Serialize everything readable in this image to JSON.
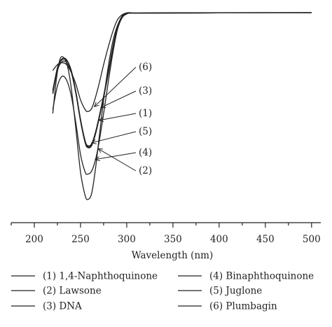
{
  "chart_data": {
    "type": "line",
    "xlabel": "Wavelength (nm)",
    "ylabel": "",
    "xlim": [
      175,
      510
    ],
    "ylim": [
      0,
      1
    ],
    "xticks": [
      200,
      250,
      300,
      350,
      400,
      450,
      500
    ],
    "tick_labels": [
      "200",
      "250",
      "300",
      "350",
      "400",
      "450",
      "500"
    ],
    "grid": false,
    "legend_placement": "bottom",
    "line_color": "#222222",
    "series": [
      {
        "name": "(1) 1,4-Naphthoquinone",
        "annotation": "(1)",
        "x": [
          220,
          225,
          230,
          235,
          240,
          245,
          250,
          255,
          258,
          262,
          266,
          270,
          275,
          280,
          285,
          290,
          295,
          300,
          305,
          310,
          400,
          500
        ],
        "y": [
          0.58,
          0.7,
          0.745,
          0.74,
          0.69,
          0.58,
          0.44,
          0.33,
          0.305,
          0.315,
          0.37,
          0.45,
          0.56,
          0.68,
          0.81,
          0.92,
          0.975,
          0.993,
          0.995,
          0.994,
          0.995,
          0.996
        ]
      },
      {
        "name": "(2) Lawsone",
        "annotation": "(2)",
        "x": [
          220,
          224,
          228,
          232,
          236,
          240,
          245,
          250,
          255,
          258,
          262,
          266,
          270,
          275,
          280,
          285,
          290,
          295,
          300,
          305,
          310,
          400,
          500
        ],
        "y": [
          0.48,
          0.66,
          0.76,
          0.765,
          0.72,
          0.61,
          0.4,
          0.18,
          0.06,
          0.04,
          0.07,
          0.19,
          0.35,
          0.55,
          0.72,
          0.85,
          0.93,
          0.975,
          0.99,
          0.995,
          0.994,
          0.995,
          0.996
        ]
      },
      {
        "name": "(3) DNA",
        "annotation": "(3)",
        "x": [
          220,
          225,
          230,
          235,
          240,
          245,
          250,
          255,
          258,
          262,
          266,
          270,
          275,
          280,
          285,
          290,
          295,
          300,
          305,
          310,
          400,
          500
        ],
        "y": [
          0.6,
          0.71,
          0.755,
          0.75,
          0.7,
          0.59,
          0.45,
          0.34,
          0.31,
          0.32,
          0.38,
          0.46,
          0.57,
          0.69,
          0.82,
          0.925,
          0.978,
          0.993,
          0.995,
          0.994,
          0.995,
          0.996
        ]
      },
      {
        "name": "(4) Binaphthoquinone",
        "annotation": "(4)",
        "x": [
          220,
          225,
          230,
          235,
          240,
          245,
          250,
          255,
          258,
          262,
          266,
          270,
          275,
          280,
          285,
          290,
          295,
          300,
          305,
          310,
          400,
          500
        ],
        "y": [
          0.5,
          0.62,
          0.67,
          0.65,
          0.57,
          0.43,
          0.27,
          0.18,
          0.17,
          0.185,
          0.24,
          0.33,
          0.48,
          0.64,
          0.79,
          0.91,
          0.97,
          0.99,
          0.995,
          0.994,
          0.995,
          0.996
        ]
      },
      {
        "name": "(5) Juglone",
        "annotation": "(5)",
        "x": [
          220,
          225,
          230,
          235,
          240,
          245,
          250,
          255,
          258,
          262,
          266,
          270,
          275,
          280,
          285,
          290,
          295,
          300,
          305,
          310,
          400,
          500
        ],
        "y": [
          0.59,
          0.715,
          0.76,
          0.755,
          0.7,
          0.59,
          0.45,
          0.34,
          0.315,
          0.325,
          0.38,
          0.46,
          0.57,
          0.69,
          0.82,
          0.925,
          0.978,
          0.993,
          0.995,
          0.994,
          0.995,
          0.996
        ]
      },
      {
        "name": "(6) Plumbagin",
        "annotation": "(6)",
        "x": [
          220,
          225,
          230,
          235,
          240,
          245,
          250,
          255,
          258,
          262,
          266,
          270,
          275,
          280,
          285,
          290,
          295,
          300,
          305,
          310,
          400,
          500
        ],
        "y": [
          0.7,
          0.73,
          0.74,
          0.73,
          0.69,
          0.63,
          0.55,
          0.5,
          0.49,
          0.505,
          0.56,
          0.63,
          0.73,
          0.82,
          0.9,
          0.96,
          0.985,
          0.995,
          0.996,
          0.995,
          0.996,
          0.997
        ]
      }
    ],
    "annotations": [
      {
        "label": "(6)",
        "x": 265,
        "y": 0.515
      },
      {
        "label": "(3)",
        "x": 272,
        "y": 0.51
      },
      {
        "label": "(1)",
        "x": 270,
        "y": 0.445
      },
      {
        "label": "(5)",
        "x": 262,
        "y": 0.33
      },
      {
        "label": "(4)",
        "x": 266,
        "y": 0.245
      },
      {
        "label": "(2)",
        "x": 269,
        "y": 0.3
      }
    ]
  }
}
